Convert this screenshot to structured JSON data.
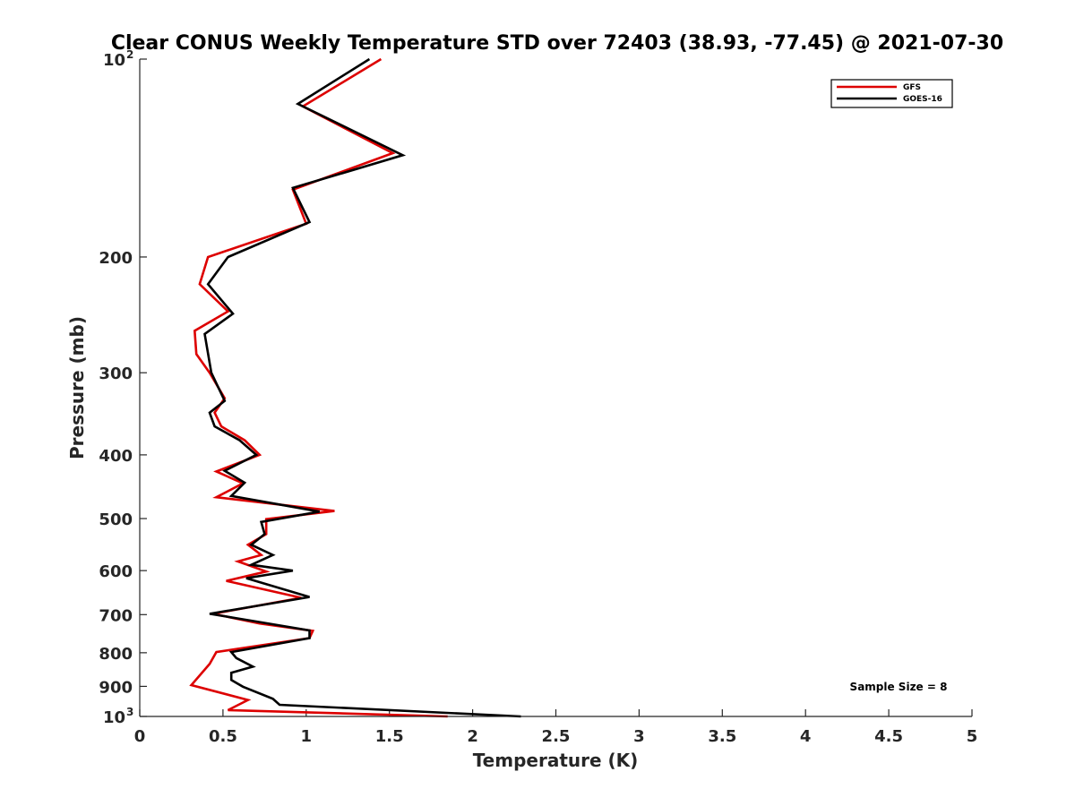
{
  "chart_data": {
    "type": "line",
    "title": "Clear CONUS Weekly Temperature STD over 72403 (38.93, -77.45) @ 2021-07-30",
    "xlabel": "Temperature (K)",
    "ylabel": "Pressure (mb)",
    "xlim": [
      0,
      5
    ],
    "ylim": [
      100,
      1000
    ],
    "y_scale": "log",
    "y_reversed": true,
    "grid": false,
    "legend_position": "top-right",
    "x_ticks": [
      {
        "value": 0,
        "label": "0"
      },
      {
        "value": 0.5,
        "label": "0.5"
      },
      {
        "value": 1,
        "label": "1"
      },
      {
        "value": 1.5,
        "label": "1.5"
      },
      {
        "value": 2,
        "label": "2"
      },
      {
        "value": 2.5,
        "label": "2.5"
      },
      {
        "value": 3,
        "label": "3"
      },
      {
        "value": 3.5,
        "label": "3.5"
      },
      {
        "value": 4,
        "label": "4"
      },
      {
        "value": 4.5,
        "label": "4.5"
      },
      {
        "value": 5,
        "label": "5"
      }
    ],
    "y_ticks": [
      {
        "value": 100,
        "base": "10",
        "exp": "2"
      },
      {
        "value": 200,
        "label": "200"
      },
      {
        "value": 300,
        "label": "300"
      },
      {
        "value": 400,
        "label": "400"
      },
      {
        "value": 500,
        "label": "500"
      },
      {
        "value": 600,
        "label": "600"
      },
      {
        "value": 700,
        "label": "700"
      },
      {
        "value": 800,
        "label": "800"
      },
      {
        "value": 900,
        "label": "900"
      },
      {
        "value": 1000,
        "base": "10",
        "exp": "3"
      }
    ],
    "series": [
      {
        "name": "GFS",
        "color": "#dd0000",
        "points": [
          [
            1.45,
            100
          ],
          [
            0.98,
            118
          ],
          [
            1.52,
            139
          ],
          [
            0.92,
            158
          ],
          [
            1.0,
            178
          ],
          [
            0.41,
            200
          ],
          [
            0.36,
            220
          ],
          [
            0.53,
            242
          ],
          [
            0.33,
            259
          ],
          [
            0.34,
            281
          ],
          [
            0.42,
            300
          ],
          [
            0.51,
            328
          ],
          [
            0.45,
            345
          ],
          [
            0.49,
            362
          ],
          [
            0.63,
            380
          ],
          [
            0.72,
            400
          ],
          [
            0.46,
            424
          ],
          [
            0.62,
            442
          ],
          [
            0.46,
            464
          ],
          [
            1.17,
            487
          ],
          [
            0.76,
            501
          ],
          [
            0.76,
            528
          ],
          [
            0.65,
            548
          ],
          [
            0.73,
            568
          ],
          [
            0.59,
            581
          ],
          [
            0.76,
            602
          ],
          [
            0.52,
            622
          ],
          [
            0.97,
            660
          ],
          [
            0.44,
            698
          ],
          [
            0.72,
            722
          ],
          [
            1.04,
            741
          ],
          [
            1.02,
            760
          ],
          [
            0.46,
            798
          ],
          [
            0.42,
            832
          ],
          [
            0.31,
            896
          ],
          [
            0.65,
            944
          ],
          [
            0.53,
            978
          ],
          [
            1.85,
            1000
          ]
        ]
      },
      {
        "name": "GOES-16",
        "color": "#000000",
        "points": [
          [
            1.38,
            100
          ],
          [
            0.95,
            117
          ],
          [
            1.58,
            140
          ],
          [
            0.92,
            157
          ],
          [
            1.02,
            177
          ],
          [
            0.53,
            200
          ],
          [
            0.41,
            220
          ],
          [
            0.56,
            244
          ],
          [
            0.39,
            262
          ],
          [
            0.43,
            300
          ],
          [
            0.51,
            331
          ],
          [
            0.42,
            345
          ],
          [
            0.45,
            362
          ],
          [
            0.6,
            380
          ],
          [
            0.7,
            400
          ],
          [
            0.51,
            423
          ],
          [
            0.63,
            441
          ],
          [
            0.55,
            462
          ],
          [
            1.08,
            488
          ],
          [
            0.73,
            506
          ],
          [
            0.75,
            528
          ],
          [
            0.67,
            548
          ],
          [
            0.8,
            568
          ],
          [
            0.67,
            588
          ],
          [
            0.92,
            600
          ],
          [
            0.64,
            616
          ],
          [
            1.02,
            658
          ],
          [
            0.42,
            698
          ],
          [
            0.7,
            717
          ],
          [
            1.02,
            740
          ],
          [
            1.02,
            760
          ],
          [
            0.55,
            798
          ],
          [
            0.58,
            815
          ],
          [
            0.68,
            840
          ],
          [
            0.55,
            858
          ],
          [
            0.55,
            880
          ],
          [
            0.62,
            901
          ],
          [
            0.8,
            940
          ],
          [
            0.84,
            960
          ],
          [
            2.29,
            1000
          ]
        ]
      }
    ],
    "annotations": [
      "Sample Size = 8"
    ]
  }
}
